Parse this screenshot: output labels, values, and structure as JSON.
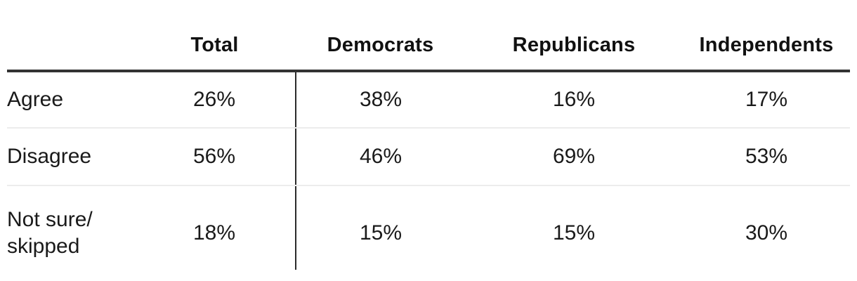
{
  "table": {
    "header": {
      "corner": "",
      "columns": [
        "Total",
        "Democrats",
        "Republicans",
        "Independents"
      ]
    },
    "rows": [
      {
        "label": "Agree",
        "values": [
          "26%",
          "38%",
          "16%",
          "17%"
        ]
      },
      {
        "label": "Disagree",
        "values": [
          "56%",
          "46%",
          "69%",
          "53%"
        ]
      },
      {
        "label": "Not sure/\nskipped",
        "values": [
          "18%",
          "15%",
          "15%",
          "30%"
        ]
      }
    ],
    "colors": {
      "text": "#1a1a1a",
      "header_text": "#111111",
      "heavy_rule": "#333333",
      "vertical_rule": "#2b2b2b",
      "light_rule": "#ececec",
      "background": "#ffffff"
    }
  },
  "chart_data": {
    "type": "table",
    "title": "",
    "columns": [
      "",
      "Total",
      "Democrats",
      "Republicans",
      "Independents"
    ],
    "rows": [
      [
        "Agree",
        "26%",
        "38%",
        "16%",
        "17%"
      ],
      [
        "Disagree",
        "56%",
        "46%",
        "69%",
        "53%"
      ],
      [
        "Not sure/skipped",
        "18%",
        "15%",
        "15%",
        "30%"
      ]
    ],
    "values_numeric": {
      "Agree": {
        "Total": 26,
        "Democrats": 38,
        "Republicans": 16,
        "Independents": 17
      },
      "Disagree": {
        "Total": 56,
        "Democrats": 46,
        "Republicans": 69,
        "Independents": 53
      },
      "Not sure/skipped": {
        "Total": 18,
        "Democrats": 15,
        "Republicans": 15,
        "Independents": 30
      }
    },
    "layout": {
      "heavy_rule_below_header": true,
      "vertical_rule_after_column": "Total",
      "light_rules_between_rows": true
    }
  }
}
